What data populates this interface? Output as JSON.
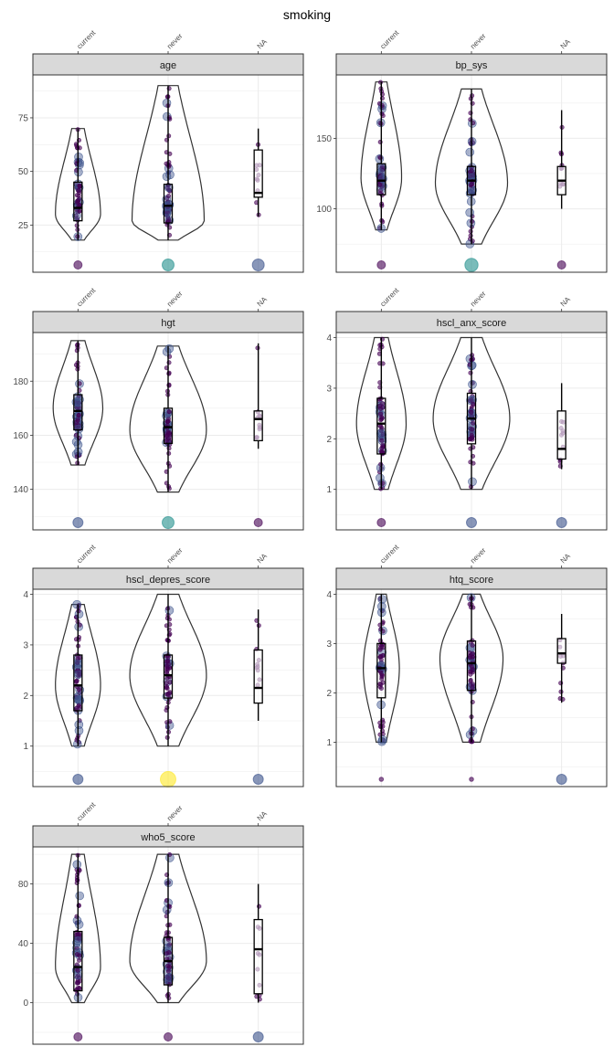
{
  "title": "smoking",
  "colors": {
    "strip": "#d9d9d9",
    "grid": "#ebebeb",
    "panel_border": "#333333",
    "violin": "#333333",
    "box": "#000000",
    "point_palette": [
      "#440154",
      "#3b528b",
      "#21908c",
      "#5dc863",
      "#fde725"
    ]
  },
  "chart_data": [
    {
      "type": "violin",
      "facet": "age",
      "categories": [
        "current",
        "never",
        "NA"
      ],
      "ylim": [
        3,
        95
      ],
      "yticks": [
        25,
        50,
        75
      ],
      "violins": [
        {
          "category": "current",
          "range": [
            18,
            70
          ],
          "mode": 30,
          "maxw": 0.5
        },
        {
          "category": "never",
          "range": [
            18,
            90
          ],
          "mode": 27,
          "maxw": 0.8
        }
      ],
      "boxes": [
        {
          "category": "current",
          "q1": 27,
          "median": 33,
          "q3": 45,
          "lo": 18,
          "hi": 70
        },
        {
          "category": "never",
          "q1": 26,
          "median": 34,
          "q3": 44,
          "lo": 18,
          "hi": 90
        },
        {
          "category": "NA",
          "q1": 38,
          "median": 40,
          "q3": 60,
          "lo": 29,
          "hi": 70
        }
      ],
      "na_points": [
        {
          "category": "current",
          "size": 1,
          "color": "#440154"
        },
        {
          "category": "never",
          "size": 3,
          "color": "#21908c"
        },
        {
          "category": "NA",
          "size": 3,
          "color": "#3b528b"
        }
      ]
    },
    {
      "type": "violin",
      "facet": "bp_sys",
      "categories": [
        "current",
        "never",
        "NA"
      ],
      "ylim": [
        55,
        195
      ],
      "yticks": [
        100,
        150
      ],
      "violins": [
        {
          "category": "current",
          "range": [
            85,
            190
          ],
          "mode": 122,
          "maxw": 0.45
        },
        {
          "category": "never",
          "range": [
            75,
            185
          ],
          "mode": 118,
          "maxw": 0.8
        }
      ],
      "boxes": [
        {
          "category": "current",
          "q1": 110,
          "median": 120,
          "q3": 132,
          "lo": 85,
          "hi": 190
        },
        {
          "category": "never",
          "q1": 110,
          "median": 120,
          "q3": 130,
          "lo": 75,
          "hi": 185
        },
        {
          "category": "NA",
          "q1": 110,
          "median": 120,
          "q3": 130,
          "lo": 100,
          "hi": 170
        }
      ],
      "na_points": [
        {
          "category": "current",
          "size": 1,
          "color": "#440154"
        },
        {
          "category": "never",
          "size": 4,
          "color": "#21908c"
        },
        {
          "category": "NA",
          "size": 1,
          "color": "#440154"
        }
      ]
    },
    {
      "type": "violin",
      "facet": "hgt",
      "categories": [
        "current",
        "never",
        "NA"
      ],
      "ylim": [
        125,
        198
      ],
      "yticks": [
        140,
        160,
        180
      ],
      "violins": [
        {
          "category": "current",
          "range": [
            149,
            195
          ],
          "mode": 170,
          "maxw": 0.55
        },
        {
          "category": "never",
          "range": [
            139,
            193
          ],
          "mode": 162,
          "maxw": 0.85
        }
      ],
      "boxes": [
        {
          "category": "current",
          "q1": 162,
          "median": 169,
          "q3": 175,
          "lo": 149,
          "hi": 195
        },
        {
          "category": "never",
          "q1": 157,
          "median": 163,
          "q3": 170,
          "lo": 139,
          "hi": 193
        },
        {
          "category": "NA",
          "q1": 158,
          "median": 166,
          "q3": 169,
          "lo": 155,
          "hi": 194
        }
      ],
      "na_points": [
        {
          "category": "current",
          "size": 2,
          "color": "#3b528b"
        },
        {
          "category": "never",
          "size": 3,
          "color": "#21908c"
        },
        {
          "category": "NA",
          "size": 1,
          "color": "#440154"
        }
      ]
    },
    {
      "type": "violin",
      "facet": "hscl_anx_score",
      "categories": [
        "current",
        "never",
        "NA"
      ],
      "ylim": [
        0.2,
        4.1
      ],
      "yticks": [
        1,
        2,
        3,
        4
      ],
      "violins": [
        {
          "category": "current",
          "range": [
            1,
            4
          ],
          "mode": 2.3,
          "maxw": 0.55
        },
        {
          "category": "never",
          "range": [
            1,
            4
          ],
          "mode": 2.4,
          "maxw": 0.85
        }
      ],
      "boxes": [
        {
          "category": "current",
          "q1": 1.7,
          "median": 2.3,
          "q3": 2.8,
          "lo": 1,
          "hi": 4
        },
        {
          "category": "never",
          "q1": 1.9,
          "median": 2.4,
          "q3": 2.9,
          "lo": 1,
          "hi": 4
        },
        {
          "category": "NA",
          "q1": 1.6,
          "median": 1.8,
          "q3": 2.55,
          "lo": 1.4,
          "hi": 3.1
        }
      ],
      "na_points": [
        {
          "category": "current",
          "size": 1,
          "color": "#440154"
        },
        {
          "category": "never",
          "size": 2,
          "color": "#3b528b"
        },
        {
          "category": "NA",
          "size": 2,
          "color": "#3b528b"
        }
      ]
    },
    {
      "type": "violin",
      "facet": "hscl_depres_score",
      "categories": [
        "current",
        "never",
        "NA"
      ],
      "ylim": [
        0.2,
        4.1
      ],
      "yticks": [
        1,
        2,
        3,
        4
      ],
      "violins": [
        {
          "category": "current",
          "range": [
            1,
            3.8
          ],
          "mode": 2.2,
          "maxw": 0.5
        },
        {
          "category": "never",
          "range": [
            1,
            4
          ],
          "mode": 2.4,
          "maxw": 0.85
        }
      ],
      "boxes": [
        {
          "category": "current",
          "q1": 1.7,
          "median": 2.2,
          "q3": 2.8,
          "lo": 1,
          "hi": 3.8
        },
        {
          "category": "never",
          "q1": 1.95,
          "median": 2.4,
          "q3": 2.8,
          "lo": 1,
          "hi": 4
        },
        {
          "category": "NA",
          "q1": 1.85,
          "median": 2.15,
          "q3": 2.9,
          "lo": 1.5,
          "hi": 3.7
        }
      ],
      "na_points": [
        {
          "category": "current",
          "size": 2,
          "color": "#3b528b"
        },
        {
          "category": "never",
          "size": 5,
          "color": "#fde725"
        },
        {
          "category": "NA",
          "size": 2,
          "color": "#3b528b"
        }
      ]
    },
    {
      "type": "violin",
      "facet": "htq_score",
      "categories": [
        "current",
        "never",
        "NA"
      ],
      "ylim": [
        0.1,
        4.1
      ],
      "yticks": [
        1,
        2,
        3,
        4
      ],
      "violins": [
        {
          "category": "current",
          "range": [
            1,
            4
          ],
          "mode": 2.5,
          "maxw": 0.4
        },
        {
          "category": "never",
          "range": [
            1,
            4
          ],
          "mode": 2.7,
          "maxw": 0.7
        }
      ],
      "boxes": [
        {
          "category": "current",
          "q1": 1.9,
          "median": 2.5,
          "q3": 3.0,
          "lo": 1,
          "hi": 4
        },
        {
          "category": "never",
          "q1": 2.05,
          "median": 2.6,
          "q3": 3.05,
          "lo": 1,
          "hi": 4
        },
        {
          "category": "NA",
          "q1": 2.6,
          "median": 2.8,
          "q3": 3.1,
          "lo": 1.8,
          "hi": 3.6
        }
      ],
      "na_points": [
        {
          "category": "current",
          "size": 0,
          "color": "#440154"
        },
        {
          "category": "never",
          "size": 0,
          "color": "#440154"
        },
        {
          "category": "NA",
          "size": 2,
          "color": "#3b528b"
        }
      ]
    },
    {
      "type": "violin",
      "facet": "who5_score",
      "categories": [
        "current",
        "never",
        "NA"
      ],
      "ylim": [
        -28,
        105
      ],
      "yticks": [
        0,
        40,
        80
      ],
      "violins": [
        {
          "category": "current",
          "range": [
            0,
            100
          ],
          "mode": 24,
          "maxw": 0.5
        },
        {
          "category": "never",
          "range": [
            0,
            100
          ],
          "mode": 28,
          "maxw": 0.85
        }
      ],
      "boxes": [
        {
          "category": "current",
          "q1": 8,
          "median": 24,
          "q3": 48,
          "lo": 0,
          "hi": 100
        },
        {
          "category": "never",
          "q1": 12,
          "median": 28,
          "q3": 44,
          "lo": 0,
          "hi": 100
        },
        {
          "category": "NA",
          "q1": 6,
          "median": 36,
          "q3": 56,
          "lo": 0,
          "hi": 80
        }
      ],
      "na_points": [
        {
          "category": "current",
          "size": 1,
          "color": "#440154"
        },
        {
          "category": "never",
          "size": 1,
          "color": "#440154"
        },
        {
          "category": "NA",
          "size": 2,
          "color": "#3b528b"
        }
      ]
    }
  ]
}
